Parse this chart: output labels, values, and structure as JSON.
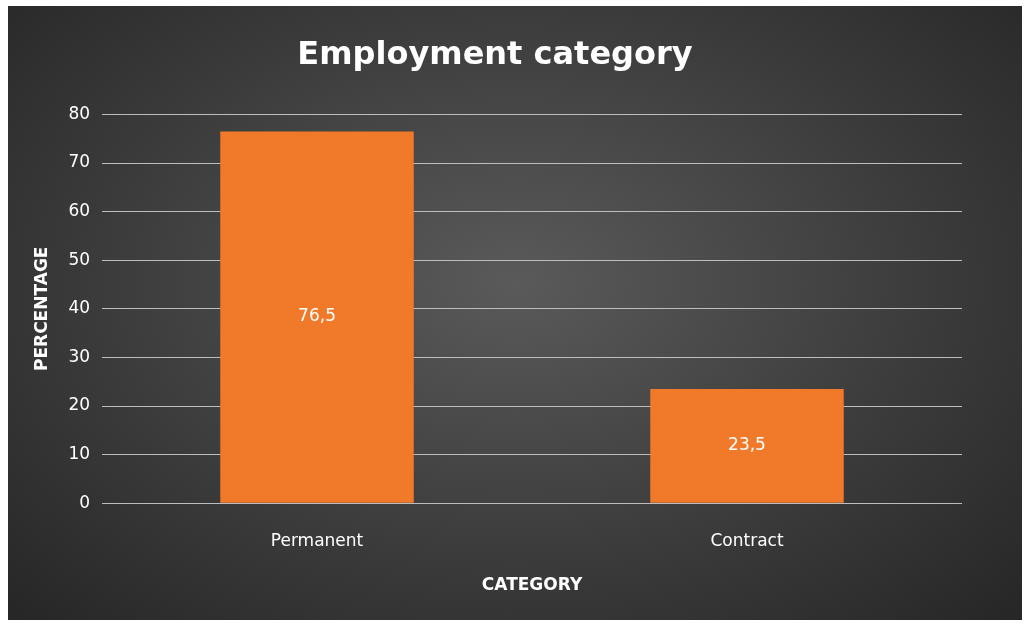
{
  "chart_data": {
    "type": "bar",
    "title": "Employment category",
    "xlabel": "CATEGORY",
    "ylabel": "PERCENTAGE",
    "categories": [
      "Permanent",
      "Contract"
    ],
    "values": [
      76.5,
      23.5
    ],
    "color": "#f07a2a",
    "value_labels": [
      "76,5",
      "23,5"
    ],
    "ylim": [
      0,
      80
    ],
    "yticks": [
      0,
      10,
      20,
      30,
      40,
      50,
      60,
      70,
      80
    ],
    "grid": "y",
    "legend": false
  }
}
